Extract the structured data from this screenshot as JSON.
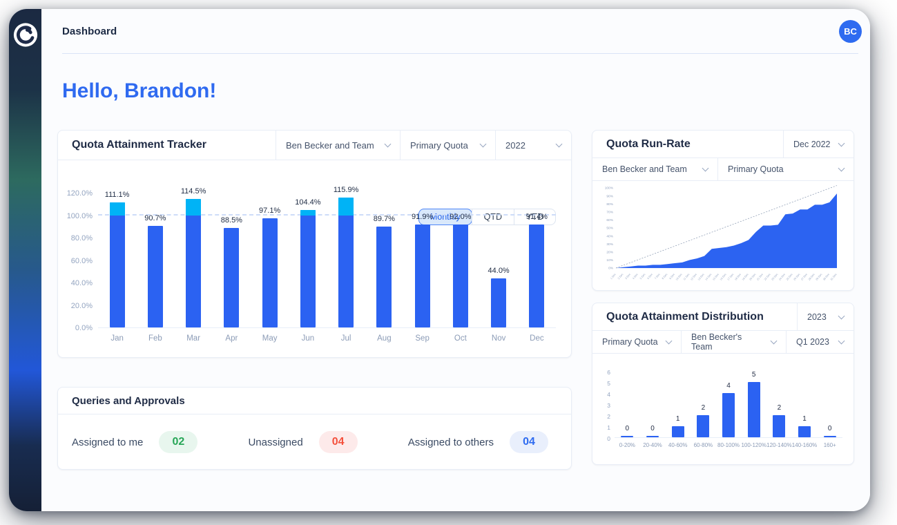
{
  "window": {
    "title": "Dashboard",
    "avatar_initials": "BC"
  },
  "greeting": "Hello, Brandon!",
  "colors": {
    "accent_blue": "#2f6af0",
    "bar_blue": "#2b62f2",
    "overflow_cyan": "#00b3f6",
    "pill_green_text": "#27a657",
    "pill_red_text": "#f4503c",
    "pill_blue_text": "#2e6bf0"
  },
  "tracker_card": {
    "title": "Quota Attainment Tracker",
    "filters": [
      {
        "label": "Ben Becker and Team"
      },
      {
        "label": "Primary Quota"
      },
      {
        "label": "2022"
      }
    ],
    "toggle": {
      "options": [
        "Monthly",
        "QTD",
        "YTD"
      ],
      "selected": "Monthly"
    }
  },
  "runrate_card": {
    "title": "Quota Run-Rate",
    "period": "Dec 2022",
    "filters": [
      {
        "label": "Ben Becker and Team"
      },
      {
        "label": "Primary Quota"
      }
    ]
  },
  "dist_card": {
    "title": "Quota Attainment Distribution",
    "year": "2023",
    "filters": [
      {
        "label": "Primary Quota"
      },
      {
        "label": "Ben Becker's Team"
      },
      {
        "label": "Q1 2023"
      }
    ]
  },
  "queries_card": {
    "title": "Queries and Approvals",
    "stats": [
      {
        "label": "Assigned to me",
        "value": "02",
        "color": "green"
      },
      {
        "label": "Unassigned",
        "value": "04",
        "color": "red"
      },
      {
        "label": "Assigned to others",
        "value": "04",
        "color": "blue"
      }
    ]
  },
  "chart_data": [
    {
      "id": "quota-attainment-monthly",
      "type": "bar",
      "title": "Quota Attainment Tracker — Monthly 2022",
      "categories": [
        "Jan",
        "Feb",
        "Mar",
        "Apr",
        "May",
        "Jun",
        "Jul",
        "Aug",
        "Sep",
        "Oct",
        "Nov",
        "Dec"
      ],
      "values": [
        111.1,
        90.7,
        114.5,
        88.5,
        97.1,
        104.4,
        115.9,
        89.7,
        91.9,
        92.0,
        44.0,
        91.4
      ],
      "labels": [
        "111.1%",
        "90.7%",
        "114.5%",
        "88.5%",
        "97.1%",
        "104.4%",
        "115.9%",
        "89.7%",
        "91.9%",
        "92.0%",
        "44.0%",
        "91.4%"
      ],
      "ylim": [
        0,
        120
      ],
      "yticks": [
        {
          "v": 120,
          "label": "120.0%"
        },
        {
          "v": 100,
          "label": "100.0%"
        },
        {
          "v": 80,
          "label": "80.0%"
        },
        {
          "v": 60,
          "label": "60.0%"
        },
        {
          "v": 40,
          "label": "40.0%"
        },
        {
          "v": 20,
          "label": "20.0%"
        },
        {
          "v": 0,
          "label": "0.0%"
        }
      ],
      "threshold": 100,
      "grid": "dashed line at 100% only",
      "legend_position": "none",
      "bar_color": "#2b62f2",
      "overflow_color": "#00b3f6"
    },
    {
      "id": "quota-run-rate",
      "type": "area",
      "title": "Quota Run-Rate — Dec 2022",
      "x_labels": [
        "1 Dec",
        "2 Dec",
        "3 Dec",
        "4 Dec",
        "5 Dec",
        "6 Dec",
        "7 Dec",
        "8 Dec",
        "9 Dec",
        "10 Dec",
        "11 Dec",
        "12 Dec",
        "13 Dec",
        "14 Dec",
        "15 Dec",
        "16 Dec",
        "17 Dec",
        "18 Dec",
        "19 Dec",
        "20 Dec",
        "21 Dec",
        "22 Dec",
        "23 Dec",
        "24 Dec",
        "25 Dec",
        "26 Dec",
        "27 Dec",
        "28 Dec",
        "29 Dec",
        "30 Dec",
        "31 Dec"
      ],
      "values": [
        0,
        1,
        2,
        3,
        3,
        4,
        4,
        5,
        6,
        7,
        10,
        12,
        15,
        24,
        25,
        26,
        28,
        31,
        35,
        45,
        53,
        53,
        54,
        67,
        68,
        73,
        73,
        79,
        79,
        82,
        93
      ],
      "ylim": [
        0,
        100
      ],
      "yticks": [
        "100%",
        "90%",
        "80%",
        "70%",
        "60%",
        "50%",
        "40%",
        "30%",
        "20%",
        "10%",
        "0%"
      ],
      "target_line": {
        "from": 0,
        "to": 103,
        "style": "dashed"
      },
      "grid": "off",
      "area_color": "#2c63f1"
    },
    {
      "id": "quota-attainment-distribution",
      "type": "bar",
      "title": "Quota Attainment Distribution — Q1 2023",
      "categories": [
        "0-20%",
        "20-40%",
        "40-60%",
        "60-80%",
        "80-100%",
        "100-120%",
        "120-140%",
        "140-160%",
        "160+"
      ],
      "values": [
        0,
        0,
        1,
        2,
        4,
        5,
        2,
        1,
        0
      ],
      "labels": [
        "0",
        "0",
        "1",
        "2",
        "4",
        "5",
        "2",
        "1",
        "0"
      ],
      "ylim": [
        0,
        6
      ],
      "yticks": [
        {
          "v": 6,
          "label": "6"
        },
        {
          "v": 5,
          "label": "5"
        },
        {
          "v": 4,
          "label": "4"
        },
        {
          "v": 3,
          "label": "3"
        },
        {
          "v": 2,
          "label": "2"
        },
        {
          "v": 1,
          "label": "1"
        },
        {
          "v": 0,
          "label": "0"
        }
      ],
      "grid": "off",
      "legend_position": "none",
      "bar_color": "#2b62f2"
    }
  ]
}
